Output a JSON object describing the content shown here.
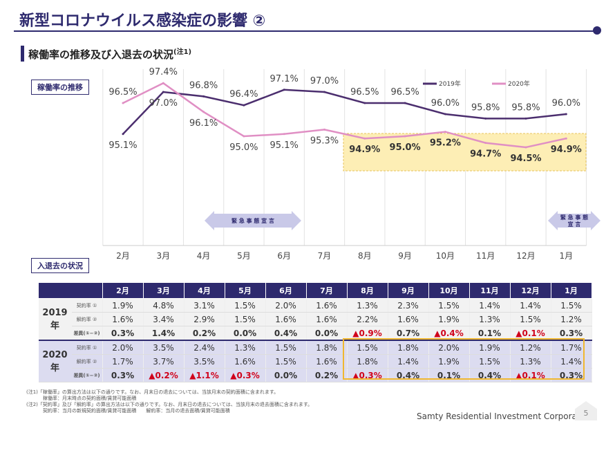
{
  "header": {
    "title": "新型コロナウイルス感染症の影響 ②",
    "subtitle": "稼働率の推移及び入退去の状況",
    "subtitle_note": "(注1)"
  },
  "section_labels": {
    "occupancy": "稼働率の推移",
    "movement": "入退去の状況"
  },
  "chart_data": {
    "type": "line",
    "categories": [
      "2月",
      "3月",
      "4月",
      "5月",
      "6月",
      "7月",
      "8月",
      "9月",
      "10月",
      "11月",
      "12月",
      "1月"
    ],
    "series": [
      {
        "name": "2019年",
        "color": "#4b2e6e",
        "values": [
          95.1,
          97.0,
          96.8,
          96.4,
          97.1,
          97.0,
          96.5,
          96.5,
          96.0,
          95.8,
          95.8,
          96.0
        ]
      },
      {
        "name": "2020年",
        "color": "#e08fc4",
        "values": [
          96.5,
          97.4,
          96.1,
          95.0,
          95.1,
          95.3,
          94.9,
          95.0,
          95.2,
          94.7,
          94.5,
          94.9
        ]
      }
    ],
    "ylim": [
      90,
      97.9
    ],
    "legend": "top-right",
    "grid": "vertical",
    "annotations": [
      "緊 急 事 態 宣 言",
      "緊 急 事 態 宣 言"
    ],
    "highlight_range": [
      "8月",
      "1月"
    ]
  },
  "table": {
    "months": [
      "2月",
      "3月",
      "4月",
      "5月",
      "6月",
      "7月",
      "8月",
      "9月",
      "10月",
      "11月",
      "12月",
      "1月"
    ],
    "years": [
      {
        "year": "2019年",
        "rows": [
          {
            "label": "契約率 ①",
            "values": [
              "1.9%",
              "4.8%",
              "3.1%",
              "1.5%",
              "2.0%",
              "1.6%",
              "1.3%",
              "2.3%",
              "1.5%",
              "1.4%",
              "1.4%",
              "1.5%"
            ]
          },
          {
            "label": "解約率 ②",
            "values": [
              "1.6%",
              "3.4%",
              "2.9%",
              "1.5%",
              "1.6%",
              "1.6%",
              "2.2%",
              "1.6%",
              "1.9%",
              "1.3%",
              "1.5%",
              "1.2%"
            ]
          },
          {
            "label": "差異(①−②)",
            "values": [
              "0.3%",
              "1.4%",
              "0.2%",
              "0.0%",
              "0.4%",
              "0.0%",
              "▲0.9%",
              "0.7%",
              "▲0.4%",
              "0.1%",
              "▲0.1%",
              "0.3%"
            ]
          }
        ]
      },
      {
        "year": "2020年",
        "rows": [
          {
            "label": "契約率 ①",
            "values": [
              "2.0%",
              "3.5%",
              "2.4%",
              "1.3%",
              "1.5%",
              "1.8%",
              "1.5%",
              "1.8%",
              "2.0%",
              "1.9%",
              "1.2%",
              "1.7%"
            ]
          },
          {
            "label": "解約率 ②",
            "values": [
              "1.7%",
              "3.7%",
              "3.5%",
              "1.6%",
              "1.5%",
              "1.6%",
              "1.8%",
              "1.4%",
              "1.9%",
              "1.5%",
              "1.3%",
              "1.4%"
            ]
          },
          {
            "label": "差異(①−②)",
            "values": [
              "0.3%",
              "▲0.2%",
              "▲1.1%",
              "▲0.3%",
              "0.0%",
              "0.2%",
              "▲0.3%",
              "0.4%",
              "0.1%",
              "0.4%",
              "▲0.1%",
              "0.3%"
            ]
          }
        ]
      }
    ]
  },
  "notes": [
    "(注1)「稼働率」の算出方法は以下の通りです。なお、月末日の退去については、当該月末の契約面積に含まれます。",
    "稼働率：月末時点の契約面積/賃貸可能面積",
    "(注2)「契約率」及び「解約率」の算出方法は以下の通りです。なお、月末日の退去については、当該月末の退去面積に含まれます。",
    "契約率：当月の新規契約面積/賃貸可能面積　　解約率：当月の退去面積/賃貸可能面積"
  ],
  "footer": {
    "company": "Samty Residential Investment Corporation",
    "page": "5"
  }
}
